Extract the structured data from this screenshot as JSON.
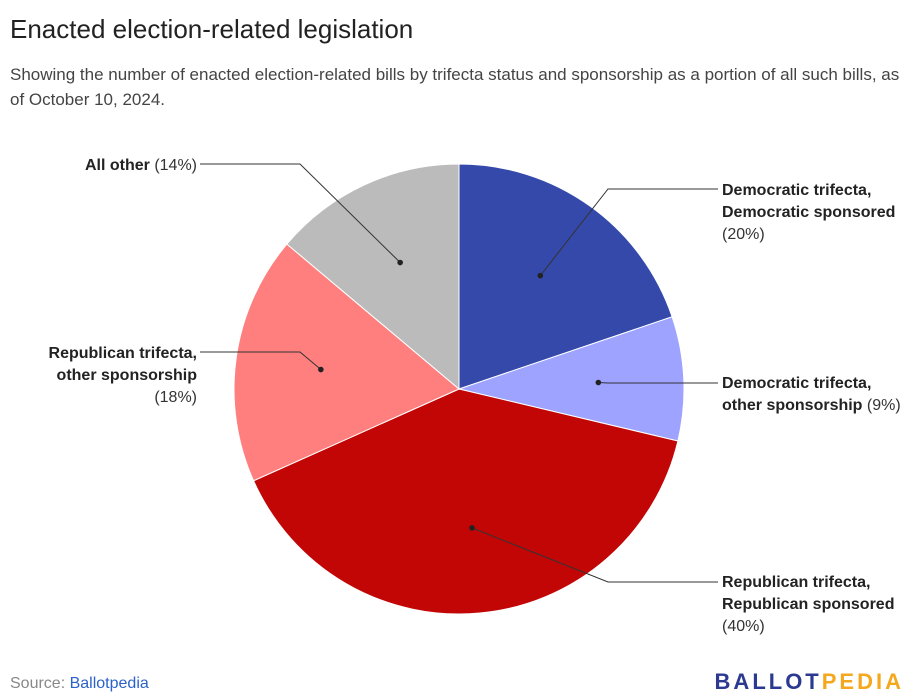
{
  "title": "Enacted election-related legislation",
  "subtitle": "Showing the number of enacted election-related bills by trifecta status and sponsorship as a portion of all such bills, as of October 10, 2024.",
  "source": {
    "label": "Source:",
    "link": "Ballotpedia"
  },
  "logo": {
    "part1": "BALLOT",
    "part2": "PEDIA"
  },
  "colors": {
    "logo_primary": "#2b3990",
    "logo_accent": "#f4a81d",
    "link": "#2a62c9"
  },
  "chart_data": {
    "type": "pie",
    "slices": [
      {
        "name": "Democratic trifecta, Democratic sponsored",
        "lines": [
          "Democratic trifecta,",
          "Democratic sponsored"
        ],
        "pct_text": "(20%)",
        "value": 20,
        "color": "#3549ab",
        "side": "right"
      },
      {
        "name": "Democratic trifecta, other sponsorship",
        "lines": [
          "Democratic trifecta,",
          "other sponsorship"
        ],
        "pct_text": "(9%)",
        "value": 9,
        "color": "#9da3ff",
        "side": "right"
      },
      {
        "name": "Republican trifecta, Republican sponsored",
        "lines": [
          "Republican trifecta,",
          "Republican sponsored"
        ],
        "pct_text": "(40%)",
        "value": 40,
        "color": "#c20606",
        "side": "right"
      },
      {
        "name": "Republican trifecta, other sponsorship",
        "lines": [
          "Republican trifecta,",
          "other sponsorship"
        ],
        "pct_text": "(18%)",
        "value": 18,
        "color": "#ff7f7f",
        "side": "left"
      },
      {
        "name": "All other",
        "lines": [
          "All other"
        ],
        "pct_text": "(14%)",
        "value": 14,
        "color": "#bbbbbb",
        "side": "left"
      }
    ]
  }
}
